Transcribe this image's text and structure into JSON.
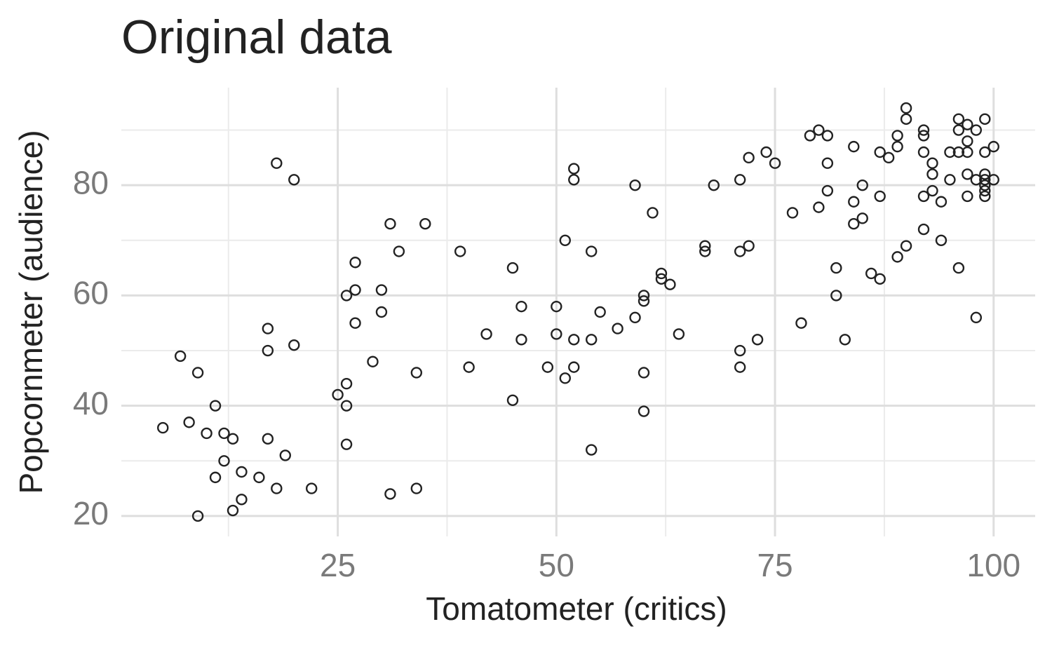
{
  "chart_data": {
    "type": "scatter",
    "title": "Original data",
    "x_label": "Tomatometer (critics)",
    "y_label": "Popcornmeter (audience)",
    "xlim": [
      0.25,
      104.75
    ],
    "ylim": [
      16.3,
      97.7
    ],
    "xticks": [
      25,
      50,
      75,
      100
    ],
    "yticks": [
      20,
      40,
      60,
      80
    ],
    "x_minor_ticks": [
      12.5,
      37.5,
      62.5,
      87.5
    ],
    "y_minor_ticks": [
      30,
      50,
      70,
      90
    ],
    "grid": true,
    "color": "#222222",
    "x": [
      5,
      7,
      8,
      9,
      9,
      10,
      11,
      11,
      12,
      12,
      13,
      13,
      14,
      14,
      16,
      17,
      17,
      17,
      18,
      18,
      19,
      20,
      20,
      22,
      25,
      26,
      26,
      26,
      26,
      27,
      27,
      27,
      29,
      30,
      30,
      31,
      31,
      32,
      34,
      34,
      35,
      39,
      40,
      42,
      45,
      45,
      46,
      46,
      49,
      50,
      50,
      51,
      51,
      52,
      52,
      52,
      52,
      54,
      54,
      54,
      55,
      57,
      59,
      59,
      60,
      60,
      60,
      60,
      61,
      62,
      62,
      63,
      64,
      67,
      67,
      68,
      71,
      71,
      71,
      71,
      72,
      72,
      73,
      74,
      75,
      77,
      78,
      79,
      80,
      80,
      81,
      81,
      81,
      82,
      82,
      83,
      84,
      84,
      84,
      85,
      85,
      86,
      87,
      87,
      87,
      88,
      89,
      89,
      89,
      90,
      90,
      90,
      92,
      92,
      92,
      92,
      92,
      93,
      93,
      93,
      94,
      94,
      95,
      95,
      96,
      96,
      96,
      96,
      97,
      97,
      97,
      97,
      97,
      98,
      98,
      98,
      99,
      99,
      99,
      99,
      99,
      99,
      99,
      100,
      100
    ],
    "y": [
      36,
      49,
      37,
      46,
      20,
      35,
      40,
      27,
      35,
      30,
      34,
      21,
      28,
      23,
      27,
      54,
      50,
      34,
      84,
      25,
      31,
      81,
      51,
      25,
      42,
      60,
      44,
      40,
      33,
      66,
      61,
      55,
      48,
      61,
      57,
      73,
      24,
      68,
      46,
      25,
      73,
      68,
      47,
      53,
      65,
      41,
      58,
      52,
      47,
      58,
      53,
      70,
      45,
      83,
      81,
      52,
      47,
      68,
      52,
      32,
      57,
      54,
      80,
      56,
      60,
      59,
      46,
      39,
      75,
      64,
      63,
      62,
      53,
      69,
      68,
      80,
      81,
      68,
      50,
      47,
      85,
      69,
      52,
      86,
      84,
      75,
      55,
      89,
      90,
      76,
      89,
      84,
      79,
      65,
      60,
      52,
      87,
      77,
      73,
      80,
      74,
      64,
      86,
      78,
      63,
      85,
      89,
      87,
      67,
      94,
      92,
      69,
      90,
      89,
      86,
      78,
      72,
      84,
      82,
      79,
      77,
      70,
      86,
      81,
      92,
      90,
      86,
      65,
      91,
      88,
      86,
      82,
      78,
      90,
      81,
      56,
      92,
      86,
      82,
      81,
      80,
      79,
      78,
      87,
      81
    ]
  }
}
